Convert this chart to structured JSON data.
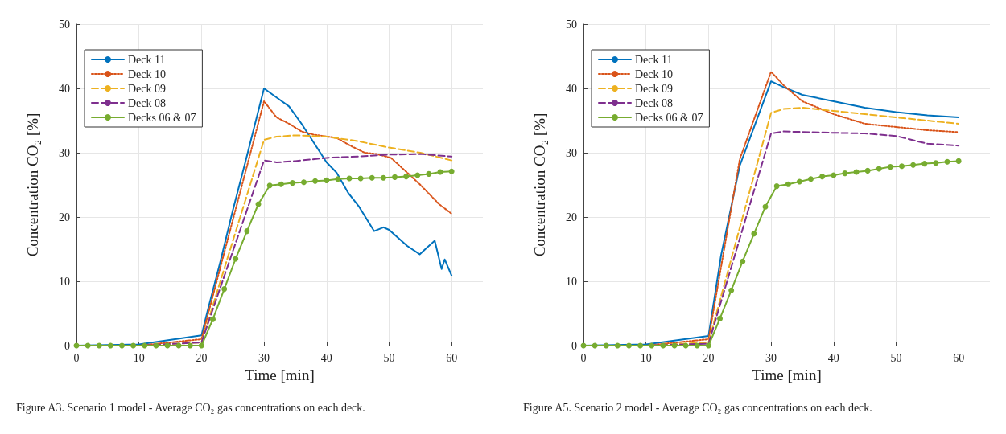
{
  "chart_data": [
    {
      "type": "line",
      "xlabel": "Time [min]",
      "ylabel": "Concentration CO₂ [%]",
      "xlim": [
        0,
        65
      ],
      "xticks": [
        0,
        10,
        20,
        30,
        40,
        50,
        60
      ],
      "ylim": [
        0,
        50
      ],
      "yticks": [
        0,
        10,
        20,
        30,
        40,
        50
      ],
      "grid": true,
      "legend": "top left",
      "annotations": [
        "Figure A3. Scenario 1 model - Average CO₂ gas concentrations on each deck."
      ],
      "series": [
        {
          "name": "Deck 11",
          "color": "#0072bd",
          "line_style": "solid",
          "marker": "none",
          "x": [
            0,
            10,
            20,
            21,
            23,
            25,
            27,
            30,
            32,
            34,
            36,
            38,
            40,
            41.6,
            43.5,
            45.2,
            47.6,
            49.1,
            50,
            52.9,
            54.9,
            56,
            57.3,
            58.4,
            58.9,
            60
          ],
          "values": [
            0,
            0.2,
            1.6,
            5.5,
            13,
            21,
            28.5,
            40,
            38.6,
            37.2,
            34.5,
            31.5,
            28.5,
            26.9,
            23.7,
            21.6,
            17.8,
            18.4,
            18,
            15.5,
            14.2,
            15.2,
            16.3,
            11.9,
            13.4,
            10.9
          ]
        },
        {
          "name": "Deck 10",
          "color": "#d95319",
          "line_style": "dotted",
          "marker": "none",
          "x": [
            0,
            10,
            20,
            30,
            32,
            34.2,
            36,
            38,
            41.6,
            44,
            46.1,
            48,
            50.3,
            52.9,
            55,
            58,
            60
          ],
          "values": [
            0,
            0,
            1,
            38,
            35.5,
            34.4,
            33.3,
            32.8,
            32.3,
            31,
            30,
            29.8,
            29.2,
            26.9,
            25,
            22,
            20.5
          ]
        },
        {
          "name": "Deck 09",
          "color": "#edb120",
          "line_style": "dashed",
          "marker": "none",
          "x": [
            0,
            10,
            20,
            30,
            32,
            35,
            40,
            45,
            50,
            55,
            60
          ],
          "values": [
            0,
            0,
            0.5,
            32,
            32.5,
            32.7,
            32.5,
            31.8,
            30.8,
            30,
            28.8
          ]
        },
        {
          "name": "Deck 08",
          "color": "#7e2f8e",
          "line_style": "dashed",
          "marker": "none",
          "x": [
            0,
            10,
            20,
            30,
            32,
            35,
            40,
            45,
            50,
            55,
            60
          ],
          "values": [
            0,
            0,
            0.5,
            28.8,
            28.5,
            28.7,
            29.2,
            29.4,
            29.7,
            29.8,
            29.4
          ]
        },
        {
          "name": "Decks 06 & 07",
          "color": "#77ac30",
          "line_style": "solid",
          "marker": "circle",
          "x": [
            0,
            1.82,
            3.64,
            5.45,
            7.27,
            9.09,
            10.91,
            12.73,
            14.55,
            16.36,
            18.18,
            20,
            21.82,
            23.64,
            25.45,
            27.27,
            29.09,
            30.91,
            32.73,
            34.55,
            36.36,
            38.18,
            40,
            41.82,
            43.64,
            45.45,
            47.27,
            49.09,
            50.91,
            52.73,
            54.55,
            56.36,
            58.18,
            60
          ],
          "values": [
            0,
            0,
            0,
            0,
            0,
            0,
            0,
            0,
            0,
            0,
            0,
            0,
            4.1,
            8.8,
            13.5,
            17.8,
            22,
            24.9,
            25.1,
            25.3,
            25.4,
            25.6,
            25.7,
            25.9,
            26,
            26,
            26.1,
            26.1,
            26.2,
            26.3,
            26.5,
            26.7,
            27,
            27.1
          ]
        }
      ]
    },
    {
      "type": "line",
      "xlabel": "Time [min]",
      "ylabel": "Concentration CO₂ [%]",
      "xlim": [
        0,
        65
      ],
      "xticks": [
        0,
        10,
        20,
        30,
        40,
        50,
        60
      ],
      "ylim": [
        0,
        50
      ],
      "yticks": [
        0,
        10,
        20,
        30,
        40,
        50
      ],
      "grid": true,
      "legend": "top left",
      "annotations": [
        "Figure A5. Scenario 2 model - Average CO₂ gas concentrations on each deck."
      ],
      "series": [
        {
          "name": "Deck 11",
          "color": "#0072bd",
          "line_style": "solid",
          "marker": "none",
          "x": [
            0,
            10,
            20,
            22,
            25,
            30,
            32,
            35,
            40,
            45,
            50,
            55,
            60
          ],
          "values": [
            0,
            0.2,
            1.5,
            14,
            28,
            41.1,
            40.2,
            39,
            38,
            37,
            36.3,
            35.8,
            35.5
          ]
        },
        {
          "name": "Deck 10",
          "color": "#d95319",
          "line_style": "dotted",
          "marker": "none",
          "x": [
            0,
            10,
            20,
            25,
            30,
            32,
            35,
            40,
            45,
            50,
            55,
            60
          ],
          "values": [
            0,
            0,
            1,
            29,
            42.6,
            40.5,
            38,
            36,
            34.5,
            34,
            33.5,
            33.2
          ]
        },
        {
          "name": "Deck 09",
          "color": "#edb120",
          "line_style": "dashed",
          "marker": "none",
          "x": [
            0,
            10,
            20,
            30,
            32,
            35,
            40,
            45,
            50,
            55,
            60
          ],
          "values": [
            0,
            0,
            0.5,
            36.2,
            36.8,
            37,
            36.5,
            36,
            35.5,
            35,
            34.5
          ]
        },
        {
          "name": "Deck 08",
          "color": "#7e2f8e",
          "line_style": "dashed",
          "marker": "none",
          "x": [
            0,
            10,
            20,
            30,
            32,
            40,
            45,
            50,
            55,
            60
          ],
          "values": [
            0,
            0,
            0.3,
            33,
            33.3,
            33.1,
            33,
            32.6,
            31.4,
            31.1
          ]
        },
        {
          "name": "Decks 06 & 07",
          "color": "#77ac30",
          "line_style": "solid",
          "marker": "circle",
          "x": [
            0,
            1.82,
            3.64,
            5.45,
            7.27,
            9.09,
            10.91,
            12.73,
            14.55,
            16.36,
            18.18,
            20,
            21.82,
            23.64,
            25.45,
            27.27,
            29.09,
            30.91,
            32.73,
            34.55,
            36.36,
            38.18,
            40,
            41.82,
            43.64,
            45.45,
            47.27,
            49.09,
            50.91,
            52.73,
            54.55,
            56.36,
            58.18,
            60
          ],
          "values": [
            0,
            0,
            0,
            0,
            0,
            0,
            0,
            0,
            0,
            0,
            0,
            0,
            4.2,
            8.6,
            13.1,
            17.4,
            21.6,
            24.8,
            25.1,
            25.5,
            25.9,
            26.3,
            26.5,
            26.8,
            27,
            27.2,
            27.5,
            27.8,
            27.9,
            28.1,
            28.3,
            28.4,
            28.6,
            28.7
          ]
        }
      ]
    }
  ]
}
